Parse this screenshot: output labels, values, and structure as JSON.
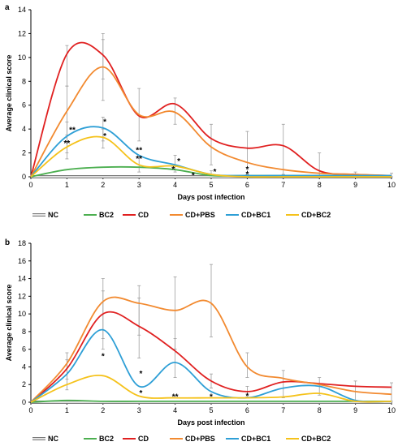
{
  "chart_data": [
    {
      "type": "line",
      "panel_label": "a",
      "xlabel": "Days post infection",
      "ylabel": "Average clinical score",
      "x": [
        0,
        1,
        2,
        3,
        4,
        5,
        6,
        7,
        8,
        9,
        10
      ],
      "xlim": [
        0,
        10
      ],
      "ylim": [
        0,
        14
      ],
      "yticks": [
        0,
        2,
        4,
        6,
        8,
        10,
        12,
        14
      ],
      "grid": false,
      "legend_position": "bottom",
      "series": [
        {
          "name": "NC",
          "color": "#bdbdbd",
          "style": "double",
          "values": [
            0,
            0,
            0,
            0,
            0,
            0,
            0,
            0,
            0,
            0,
            0
          ]
        },
        {
          "name": "BC2",
          "color": "#4caf50",
          "values": [
            0,
            0.6,
            0.8,
            0.8,
            0.6,
            0.1,
            0.1,
            0.1,
            0.1,
            0.1,
            0.1
          ]
        },
        {
          "name": "CD",
          "color": "#e02020",
          "values": [
            0,
            10.3,
            10.2,
            5.1,
            6.1,
            3.2,
            2.4,
            2.6,
            0.5,
            0.2,
            0.1
          ]
        },
        {
          "name": "CD+PBS",
          "color": "#f28a30",
          "values": [
            0,
            5.5,
            9.2,
            5.2,
            5.4,
            2.5,
            1.2,
            0.6,
            0.3,
            0.2,
            0.1
          ]
        },
        {
          "name": "CD+BC1",
          "color": "#2e9fd6",
          "values": [
            0,
            3.4,
            4.1,
            1.8,
            1.0,
            0.2,
            0.1,
            0.1,
            0.1,
            0.1,
            0.1
          ]
        },
        {
          "name": "CD+BC2",
          "color": "#f5c21b",
          "values": [
            0,
            2.5,
            3.3,
            1.0,
            0.9,
            0.2,
            0,
            0,
            0,
            0,
            0
          ]
        }
      ],
      "error_bars": [
        {
          "x": 1,
          "low": 7.6,
          "high": 11.0
        },
        {
          "x": 1,
          "low": 3.0,
          "high": 7.6
        },
        {
          "x": 1,
          "low": 2.0,
          "high": 4.6
        },
        {
          "x": 1,
          "low": 1.5,
          "high": 3.5
        },
        {
          "x": 2,
          "low": 8.2,
          "high": 12.0
        },
        {
          "x": 2,
          "low": 6.4,
          "high": 11.5
        },
        {
          "x": 2,
          "low": 3.0,
          "high": 5.0
        },
        {
          "x": 2,
          "low": 2.4,
          "high": 4.0
        },
        {
          "x": 3,
          "low": 3.0,
          "high": 7.4
        },
        {
          "x": 3,
          "low": 0.4,
          "high": 1.8
        },
        {
          "x": 4,
          "low": 4.4,
          "high": 6.6
        },
        {
          "x": 4,
          "low": 0.4,
          "high": 1.8
        },
        {
          "x": 5,
          "low": 1.0,
          "high": 4.4
        },
        {
          "x": 5,
          "low": 0.1,
          "high": 0.5
        },
        {
          "x": 6,
          "low": 0.2,
          "high": 3.8
        },
        {
          "x": 7,
          "low": 0.2,
          "high": 4.4
        },
        {
          "x": 8,
          "low": 0,
          "high": 2.0
        },
        {
          "x": 9,
          "low": 0,
          "high": 0.4
        },
        {
          "x": 10,
          "low": 0,
          "high": 0.3
        }
      ],
      "annotations": [
        {
          "text": "**",
          "x": 1.15,
          "y": 3.9
        },
        {
          "text": "**",
          "x": 1.0,
          "y": 2.8
        },
        {
          "text": "*",
          "x": 2.05,
          "y": 4.6
        },
        {
          "text": "*",
          "x": 2.05,
          "y": 3.4
        },
        {
          "text": "**",
          "x": 3.0,
          "y": 2.2
        },
        {
          "text": "**",
          "x": 3.0,
          "y": 1.5
        },
        {
          "text": "*",
          "x": 4.1,
          "y": 1.3
        },
        {
          "text": "*",
          "x": 3.95,
          "y": 0.6
        },
        {
          "text": "*",
          "x": 5.1,
          "y": 0.4
        },
        {
          "text": "*",
          "x": 6.0,
          "y": 0.6
        },
        {
          "text": "*",
          "x": 6.0,
          "y": 0.2
        },
        {
          "text": "*",
          "x": 4.5,
          "y": 0.1
        }
      ]
    },
    {
      "type": "line",
      "panel_label": "b",
      "xlabel": "Days post infection",
      "ylabel": "Average clinical score",
      "x": [
        0,
        1,
        2,
        3,
        4,
        5,
        6,
        7,
        8,
        9,
        10
      ],
      "xlim": [
        0,
        10
      ],
      "ylim": [
        0,
        18
      ],
      "yticks": [
        0,
        2,
        4,
        6,
        8,
        10,
        12,
        14,
        16,
        18
      ],
      "grid": false,
      "legend_position": "bottom",
      "series": [
        {
          "name": "NC",
          "color": "#bdbdbd",
          "style": "double",
          "values": [
            0,
            0,
            0,
            0,
            0,
            0,
            0,
            0,
            0,
            0,
            0
          ]
        },
        {
          "name": "BC2",
          "color": "#4caf50",
          "values": [
            0,
            0.2,
            0.1,
            0.1,
            0.1,
            0.1,
            0.1,
            0.1,
            0.1,
            0.1,
            0.1
          ]
        },
        {
          "name": "CD",
          "color": "#e02020",
          "values": [
            0,
            3.8,
            10.0,
            8.6,
            5.8,
            2.4,
            1.2,
            2.3,
            2.1,
            1.8,
            1.7
          ]
        },
        {
          "name": "CD+PBS",
          "color": "#f28a30",
          "values": [
            0,
            4.4,
            11.4,
            11.2,
            10.4,
            11.2,
            4.0,
            2.7,
            2.0,
            1.2,
            0.9
          ]
        },
        {
          "name": "CD+BC1",
          "color": "#2e9fd6",
          "values": [
            0,
            3.2,
            8.2,
            1.8,
            4.5,
            1.2,
            0.5,
            1.6,
            1.8,
            0.2,
            0.1
          ]
        },
        {
          "name": "CD+BC2",
          "color": "#f5c21b",
          "values": [
            0,
            2.0,
            3.0,
            0.7,
            0.5,
            0.5,
            0.5,
            0.6,
            1.0,
            0.1,
            0.1
          ]
        }
      ],
      "error_bars": [
        {
          "x": 1,
          "low": 2.6,
          "high": 5.6
        },
        {
          "x": 1,
          "low": 1.4,
          "high": 4.8
        },
        {
          "x": 2,
          "low": 7.2,
          "high": 14.0
        },
        {
          "x": 2,
          "low": 6.0,
          "high": 12.6
        },
        {
          "x": 3,
          "low": 7.6,
          "high": 13.2
        },
        {
          "x": 3,
          "low": 5.0,
          "high": 11.8
        },
        {
          "x": 4,
          "low": 6.0,
          "high": 14.2
        },
        {
          "x": 4,
          "low": 2.8,
          "high": 7.2
        },
        {
          "x": 5,
          "low": 7.4,
          "high": 15.6
        },
        {
          "x": 5,
          "low": 1.6,
          "high": 3.2
        },
        {
          "x": 6,
          "low": 2.8,
          "high": 5.6
        },
        {
          "x": 6,
          "low": 0.6,
          "high": 1.8
        },
        {
          "x": 7,
          "low": 0.5,
          "high": 3.6
        },
        {
          "x": 8,
          "low": 0.8,
          "high": 2.8
        },
        {
          "x": 9,
          "low": 0.2,
          "high": 2.4
        },
        {
          "x": 10,
          "low": 0.1,
          "high": 2.2
        }
      ],
      "annotations": [
        {
          "text": "*",
          "x": 2.0,
          "y": 5.2
        },
        {
          "text": "*",
          "x": 3.05,
          "y": 3.2
        },
        {
          "text": "*",
          "x": 3.05,
          "y": 1.0
        },
        {
          "text": "**",
          "x": 4.0,
          "y": 0.6
        },
        {
          "text": "*",
          "x": 5.0,
          "y": 0.6
        },
        {
          "text": "*",
          "x": 6.0,
          "y": 0.7
        }
      ]
    }
  ]
}
